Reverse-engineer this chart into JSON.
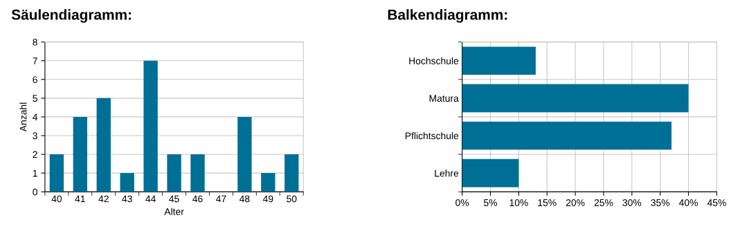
{
  "chart_data": [
    {
      "type": "bar",
      "title": "Säulendiagramm:",
      "xlabel": "Alter",
      "ylabel": "Anzahl",
      "categories": [
        "40",
        "41",
        "42",
        "43",
        "44",
        "45",
        "46",
        "47",
        "48",
        "49",
        "50"
      ],
      "values": [
        2,
        4,
        5,
        1,
        7,
        2,
        2,
        0,
        4,
        1,
        2
      ],
      "color": "#006f95",
      "ylim": [
        0,
        8
      ],
      "yticks": [
        0,
        1,
        2,
        3,
        4,
        5,
        6,
        7,
        8
      ],
      "grid": "y"
    },
    {
      "type": "bar",
      "orientation": "horizontal",
      "title": "Balkendiagramm:",
      "categories": [
        "Hochschule",
        "Matura",
        "Pflichtschule",
        "Lehre"
      ],
      "values": [
        13,
        40,
        37,
        10
      ],
      "color": "#006f95",
      "xlim": [
        0,
        45
      ],
      "xticks": [
        {
          "value": 0,
          "label": "0%"
        },
        {
          "value": 5,
          "label": "5%"
        },
        {
          "value": 10,
          "label": "10%"
        },
        {
          "value": 15,
          "label": "15%"
        },
        {
          "value": 20,
          "label": "20%"
        },
        {
          "value": 25,
          "label": "25%"
        },
        {
          "value": 30,
          "label": "30%"
        },
        {
          "value": 35,
          "label": "35%"
        },
        {
          "value": 40,
          "label": "40%"
        },
        {
          "value": 45,
          "label": "45%"
        }
      ],
      "grid": true
    }
  ]
}
